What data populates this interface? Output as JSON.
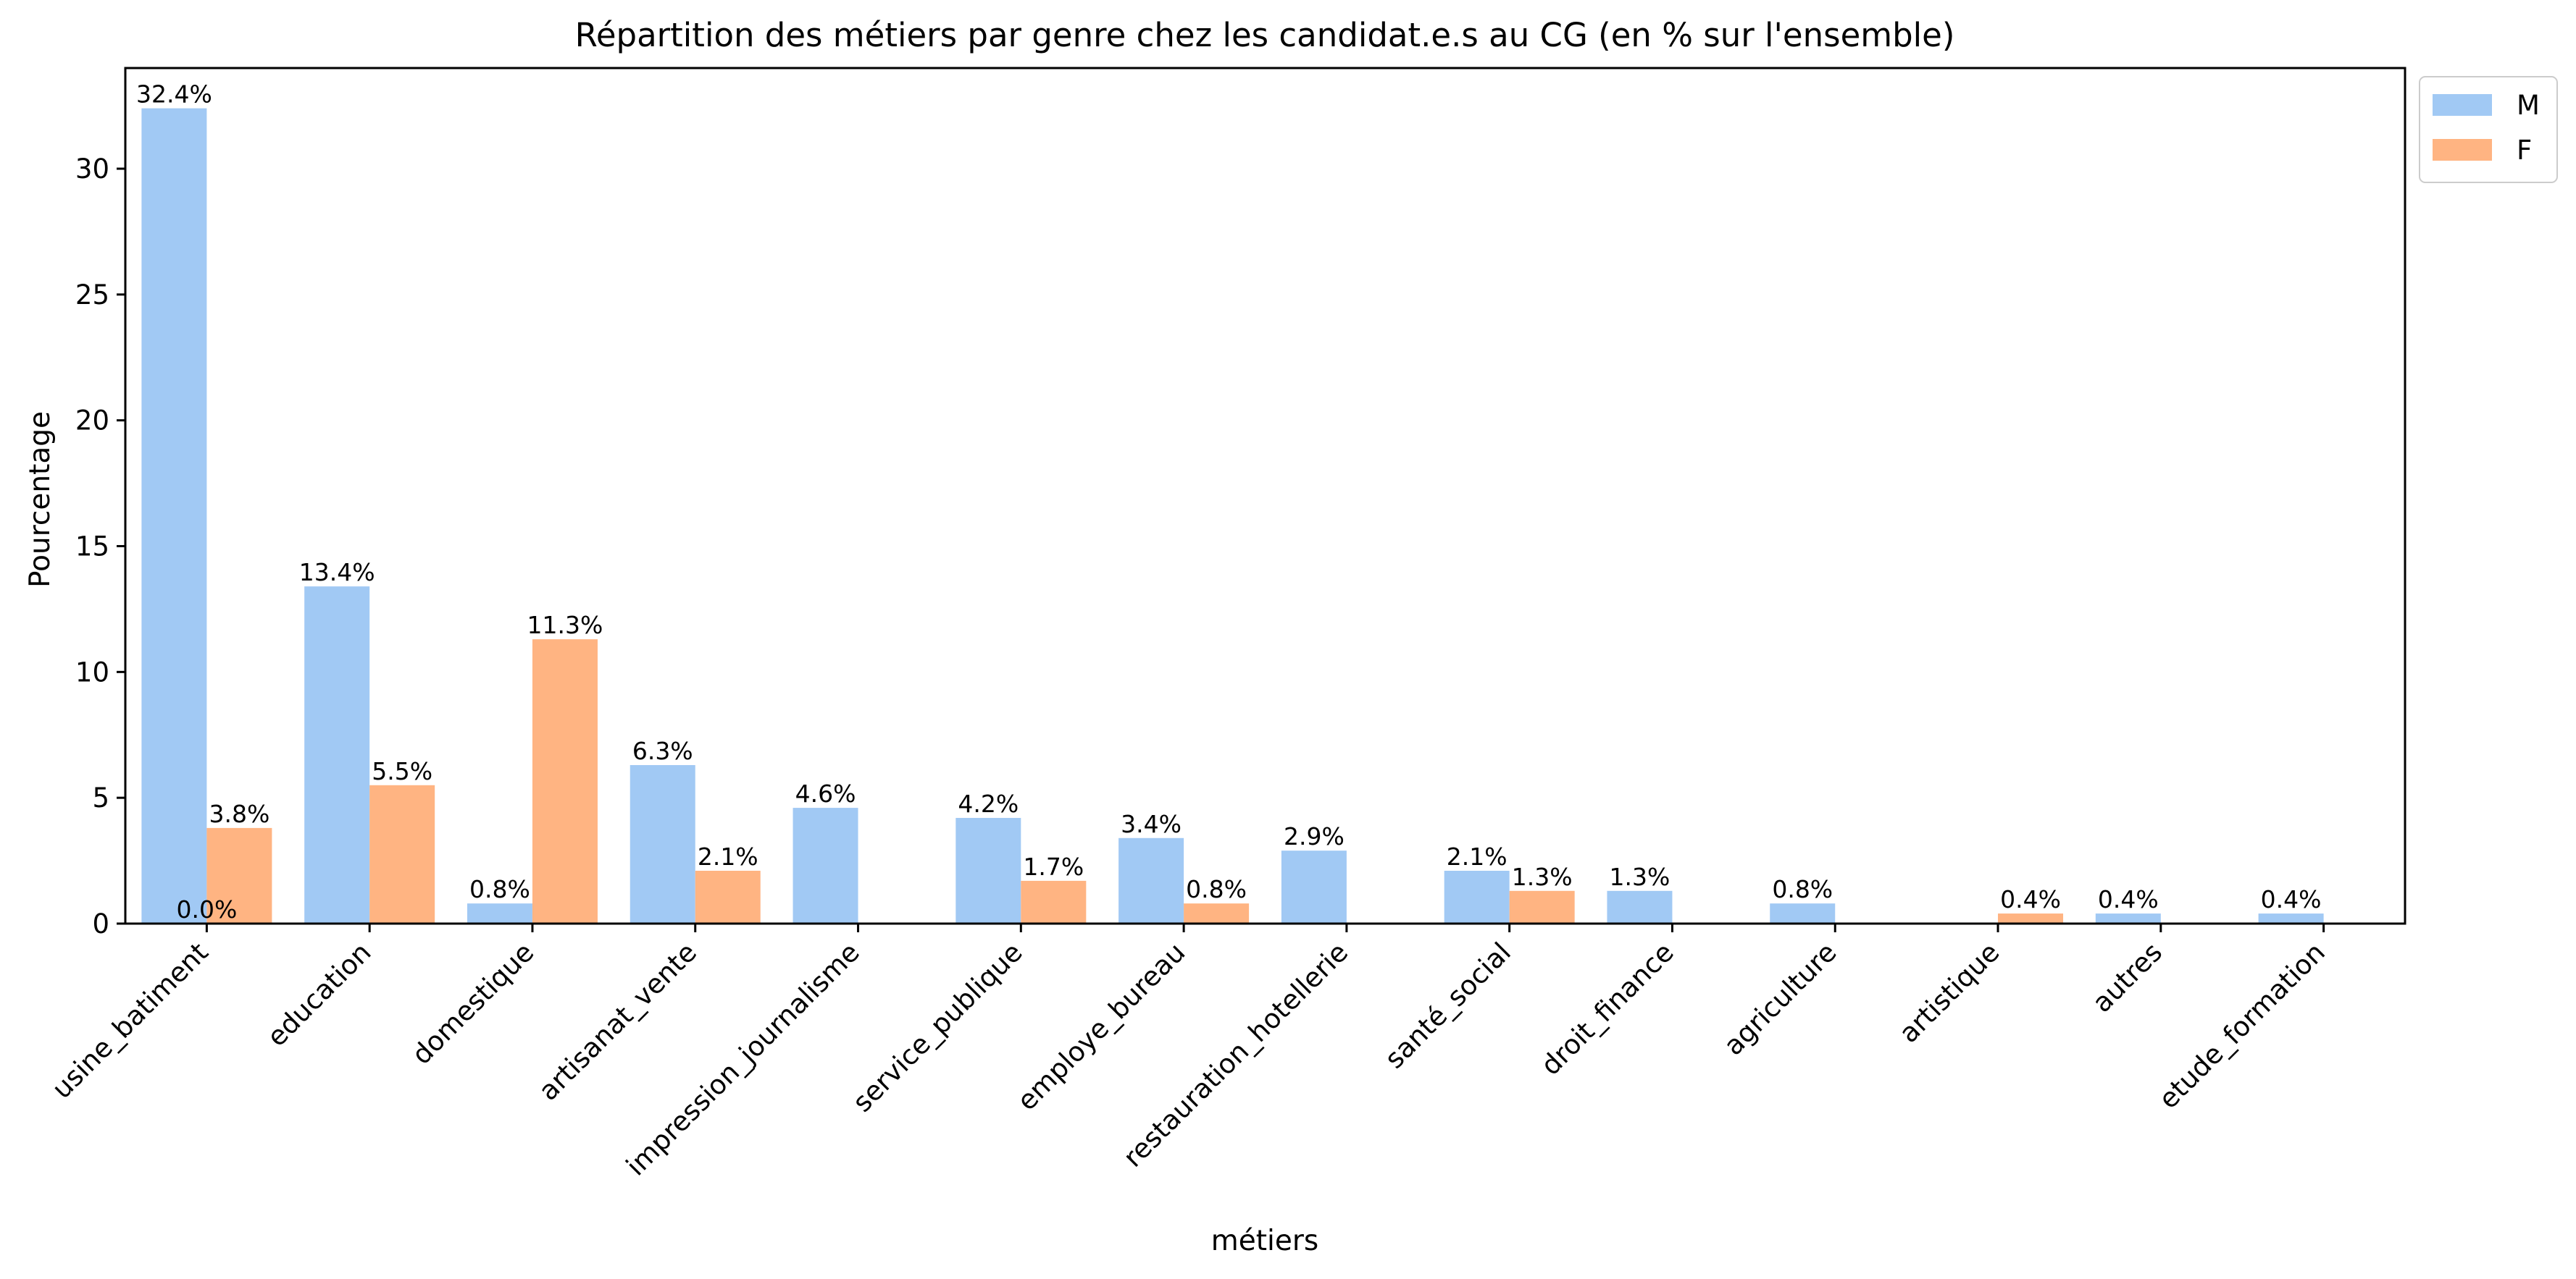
{
  "chart_data": {
    "type": "bar",
    "title": "Répartition des métiers par genre chez les candidat.e.s au CG (en % sur l'ensemble)",
    "xlabel": "métiers",
    "ylabel": "Pourcentage",
    "ylim": [
      0,
      34
    ],
    "yticks": [
      0,
      5,
      10,
      15,
      20,
      25,
      30
    ],
    "grid": false,
    "legend_position": "outside-top-right",
    "categories": [
      "usine_batiment",
      "education",
      "domestique",
      "artisanat_vente",
      "impression_journalisme",
      "service_publique",
      "employe_bureau",
      "restauration_hotellerie",
      "santé_social",
      "droit_finance",
      "agriculture",
      "artistique",
      "autres",
      "etude_formation"
    ],
    "series": [
      {
        "name": "M",
        "color": "#a1c9f4",
        "values": [
          32.4,
          13.4,
          0.8,
          6.3,
          4.6,
          4.2,
          3.4,
          2.9,
          2.1,
          1.3,
          0.8,
          null,
          0.4,
          0.4
        ],
        "labels": [
          "32.4%",
          "13.4%",
          "0.8%",
          "6.3%",
          "4.6%",
          "4.2%",
          "3.4%",
          "2.9%",
          "2.1%",
          "1.3%",
          "0.8%",
          null,
          "0.4%",
          "0.4%"
        ]
      },
      {
        "name": "F",
        "color": "#ffb482",
        "values": [
          3.8,
          5.5,
          11.3,
          2.1,
          null,
          1.7,
          0.8,
          null,
          1.3,
          null,
          null,
          0.4,
          null,
          null
        ],
        "labels": [
          "3.8%",
          "5.5%",
          "11.3%",
          "2.1%",
          null,
          "1.7%",
          "0.8%",
          null,
          "1.3%",
          null,
          null,
          "0.4%",
          null,
          null
        ]
      }
    ],
    "annotations": [
      {
        "text": "0.0%",
        "category": "usine_batiment",
        "value": 0
      }
    ]
  }
}
